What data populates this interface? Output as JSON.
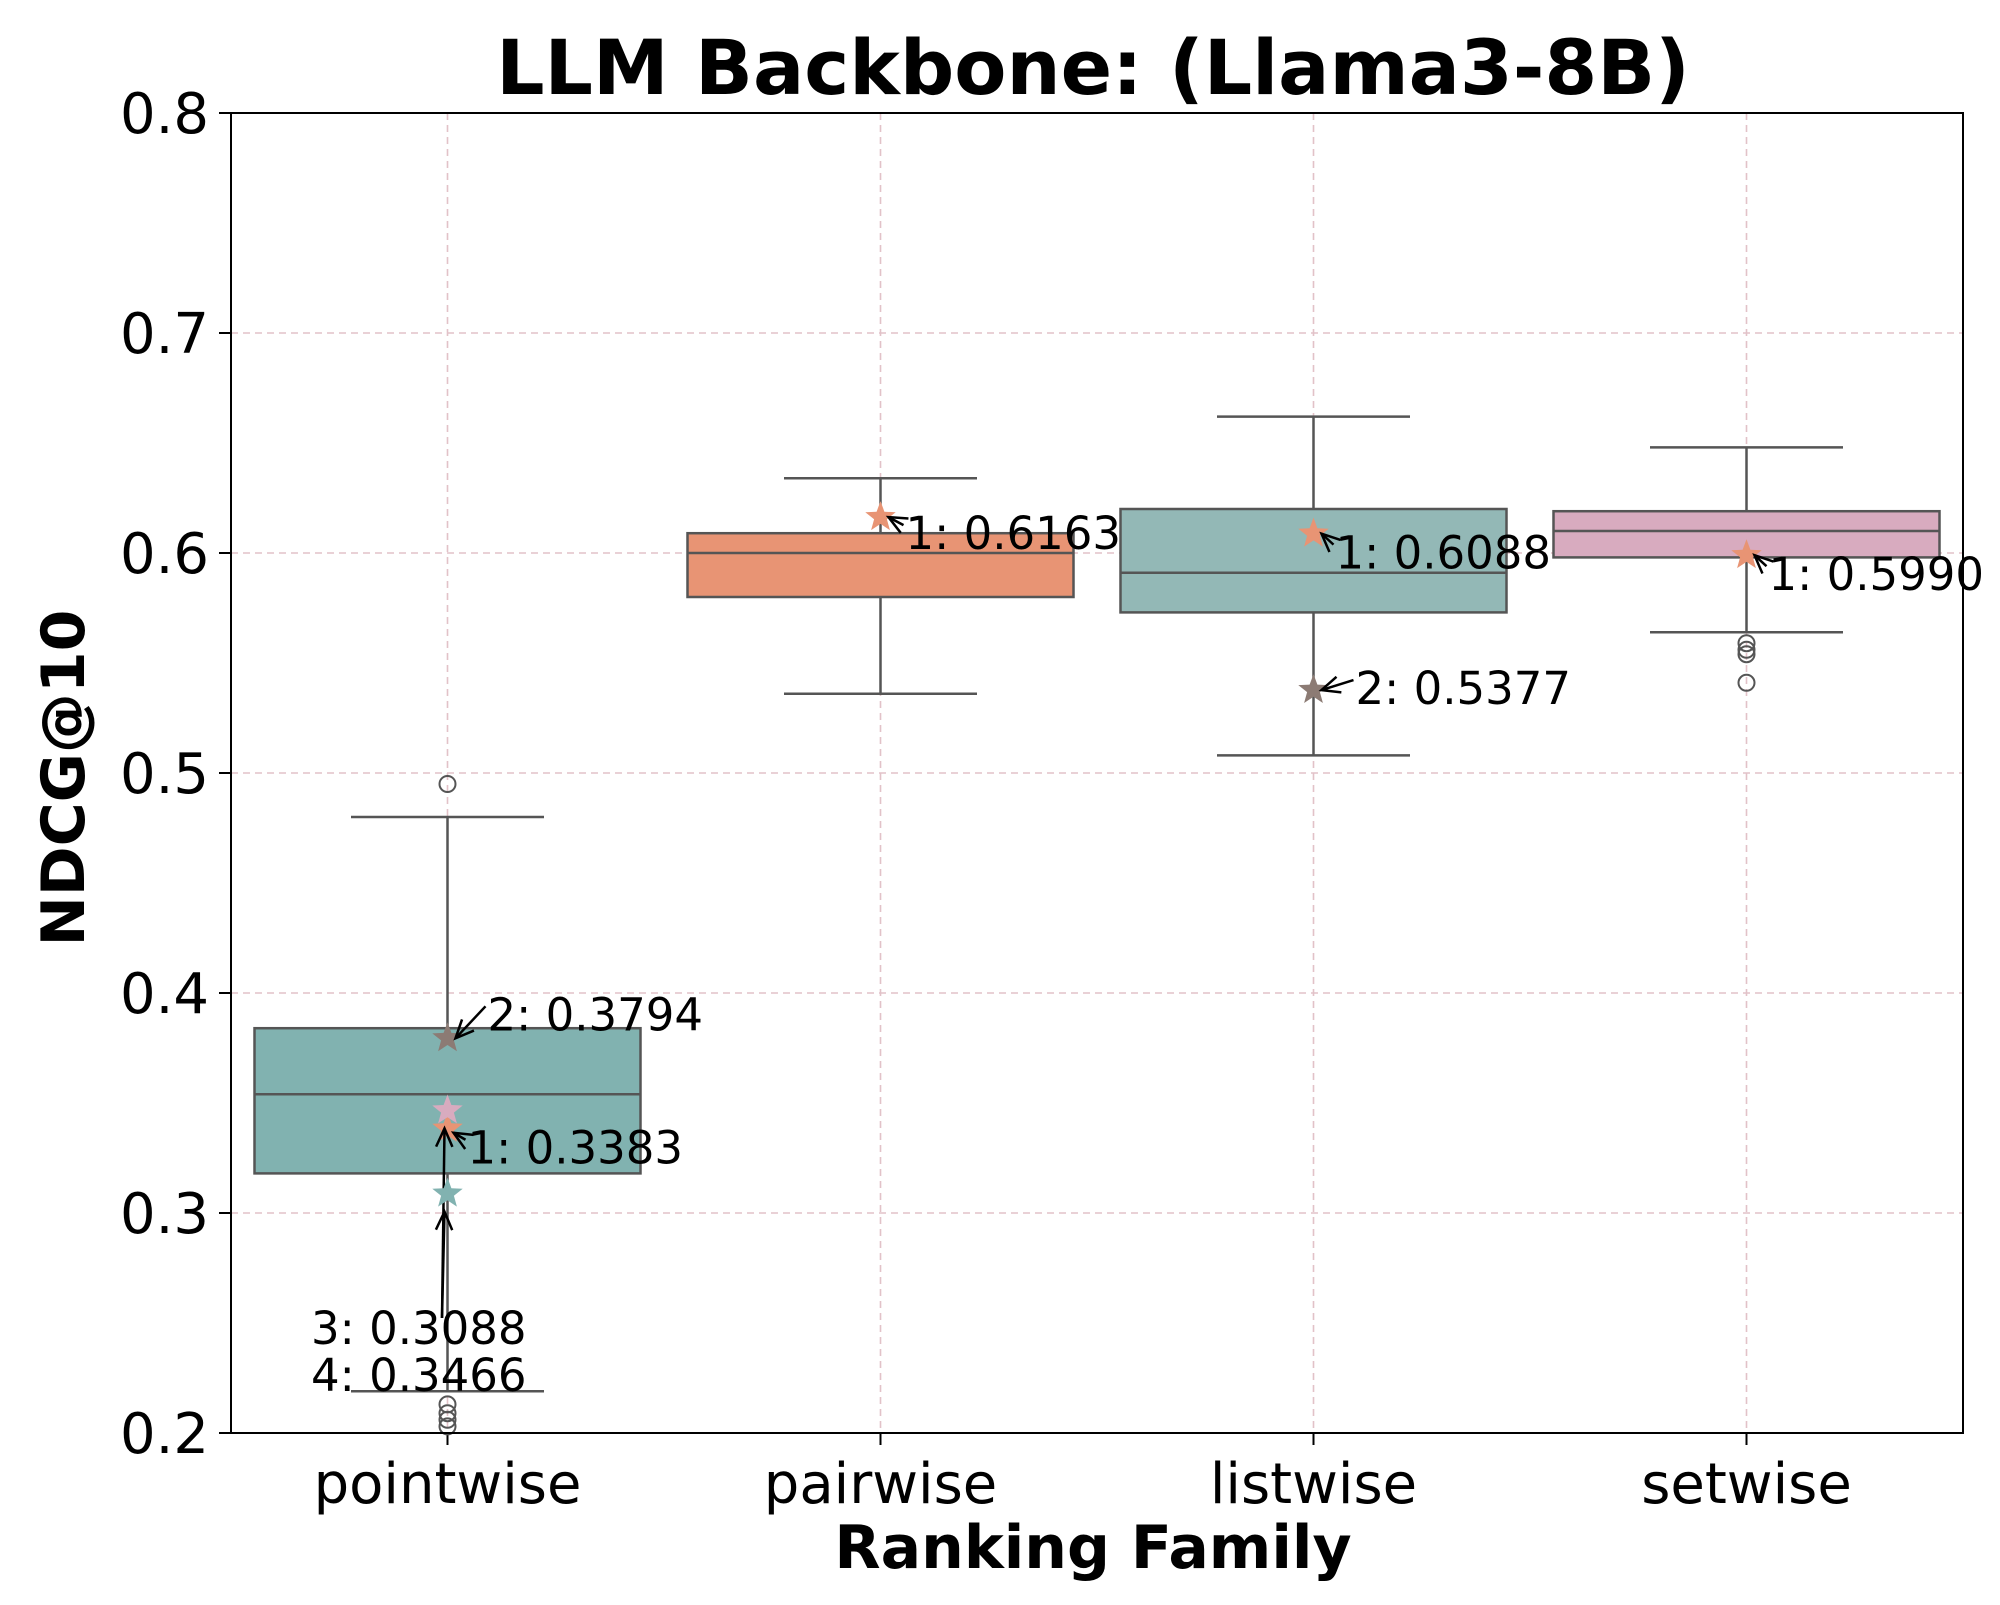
{
  "chart_data": {
    "type": "box",
    "title": "LLM Backbone: (Llama3-8B)",
    "xlabel": "Ranking Family",
    "ylabel": "NDCG@10",
    "ylim": [
      0.2,
      0.8
    ],
    "yticks": [
      "0.2",
      "0.3",
      "0.4",
      "0.5",
      "0.6",
      "0.7",
      "0.8"
    ],
    "grid": true,
    "categories": [
      "pointwise",
      "pairwise",
      "listwise",
      "setwise"
    ],
    "boxes": [
      {
        "category": "pointwise",
        "color": "#81B2B0",
        "whisker_low": 0.219,
        "q1": 0.318,
        "median": 0.354,
        "q3": 0.384,
        "whisker_high": 0.48,
        "outliers": [
          0.495,
          0.213,
          0.209,
          0.206,
          0.203
        ]
      },
      {
        "category": "pairwise",
        "color": "#E89474",
        "whisker_low": 0.536,
        "q1": 0.58,
        "median": 0.6,
        "q3": 0.609,
        "whisker_high": 0.634,
        "outliers": []
      },
      {
        "category": "listwise",
        "color": "#93B8B6",
        "whisker_low": 0.508,
        "q1": 0.573,
        "median": 0.591,
        "q3": 0.62,
        "whisker_high": 0.662,
        "outliers": []
      },
      {
        "category": "setwise",
        "color": "#D8ABBF",
        "whisker_low": 0.564,
        "q1": 0.598,
        "median": 0.61,
        "q3": 0.619,
        "whisker_high": 0.648,
        "outliers": [
          0.559,
          0.556,
          0.554,
          0.541
        ]
      }
    ],
    "highlights": [
      {
        "category": "pointwise",
        "rank": 2,
        "value": 0.3794,
        "label": "2: 0.3794",
        "color": "#8C7B74"
      },
      {
        "category": "pointwise",
        "rank": 1,
        "value": 0.3383,
        "label": "1: 0.3383",
        "color": "#E89474"
      },
      {
        "category": "pointwise",
        "rank": 4,
        "value": 0.3466,
        "label": "4: 0.3466",
        "color": "#D8ABBF"
      },
      {
        "category": "pointwise",
        "rank": 3,
        "value": 0.3088,
        "label": "3: 0.3088",
        "color": "#81B2B0"
      },
      {
        "category": "pairwise",
        "rank": 1,
        "value": 0.6163,
        "label": "1: 0.6163",
        "color": "#E89474"
      },
      {
        "category": "listwise",
        "rank": 1,
        "value": 0.6088,
        "label": "1: 0.6088",
        "color": "#E89474"
      },
      {
        "category": "listwise",
        "rank": 2,
        "value": 0.5377,
        "label": "2: 0.5377",
        "color": "#8C7B74"
      },
      {
        "category": "setwise",
        "rank": 1,
        "value": 0.599,
        "label": "1: 0.5990",
        "color": "#E89474"
      }
    ]
  }
}
